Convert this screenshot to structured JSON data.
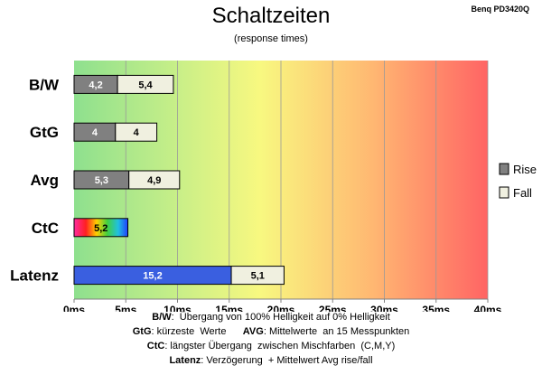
{
  "header": {
    "title": "Schaltzeiten",
    "subtitle": "(response times)",
    "model": "Benq PD3420Q"
  },
  "colors": {
    "rise": "#808080",
    "fall": "#f0f0e0",
    "latenz_bar": "#3a5fe0",
    "gradient": [
      "#8ee08e",
      "#f8f880",
      "#ffb070",
      "#ff6060"
    ]
  },
  "chart_data": {
    "type": "bar",
    "orientation": "horizontal",
    "stacked": true,
    "categories": [
      "B/W",
      "GtG",
      "Avg",
      "CtC",
      "Latenz"
    ],
    "series": [
      {
        "name": "Rise",
        "values": [
          4.2,
          4,
          5.3,
          5.2,
          15.2
        ],
        "labels": [
          "4,2",
          "4",
          "5,3",
          "5,2",
          "15,2"
        ]
      },
      {
        "name": "Fall",
        "values": [
          5.4,
          4,
          4.9,
          0,
          5.1
        ],
        "labels": [
          "5,4",
          "4",
          "4,9",
          "",
          "5,1"
        ]
      }
    ],
    "xlim": [
      0,
      40
    ],
    "xticks": [
      0,
      5,
      10,
      15,
      20,
      25,
      30,
      35,
      40
    ],
    "xtick_labels": [
      "0ms",
      "5ms",
      "10ms",
      "15ms",
      "20ms",
      "25ms",
      "30ms",
      "35ms",
      "40ms"
    ],
    "grid": true,
    "legend_position": "right",
    "special_fills": {
      "CtC": "rainbow",
      "Latenz": "blue"
    }
  },
  "notes": [
    {
      "key": "B/W",
      "text": ":  Übergang von 100% Helligkeit auf 0% Helligkeit"
    },
    {
      "key": "GtG",
      "text": ": kürzeste  Werte",
      "key2": "AVG",
      "text2": ": Mittelwerte  an 15 Messpunkten"
    },
    {
      "key": "CtC",
      "text": ": längster Übergang  zwischen Mischfarben  (C,M,Y)"
    },
    {
      "key": "Latenz",
      "text": ": Verzögerung  + Mittelwert Avg rise/fall"
    }
  ]
}
